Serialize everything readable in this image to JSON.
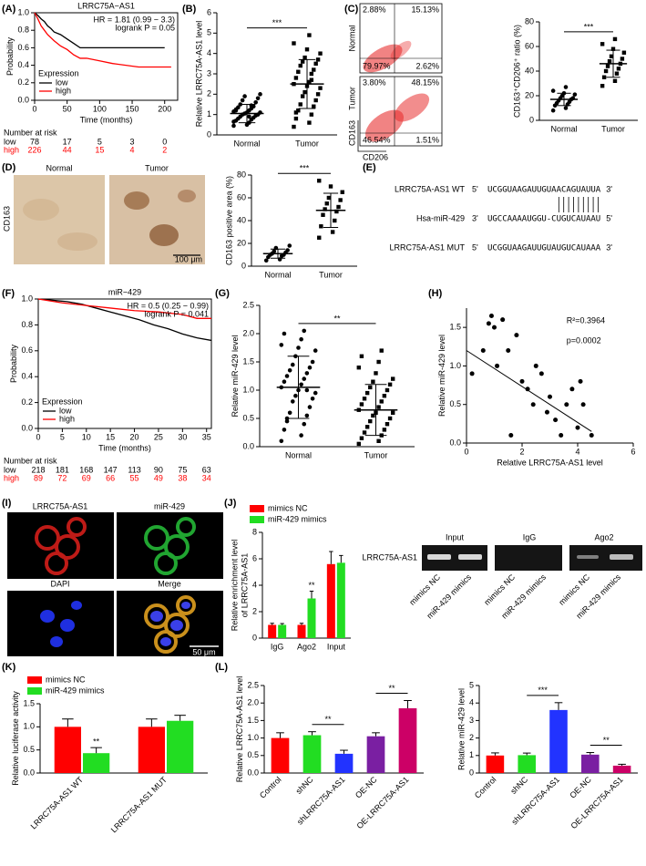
{
  "panel_labels": [
    "(A)",
    "(B)",
    "(C)",
    "(D)",
    "(E)",
    "(F)",
    "(G)",
    "(H)",
    "(I)",
    "(J)",
    "(K)",
    "(L)"
  ],
  "flow": {
    "rows": [
      {
        "name": "Normal",
        "quadrants": [
          "2.88%",
          "15.13%",
          "79.97%",
          "2.62%"
        ]
      },
      {
        "name": "Tumor",
        "quadrants": [
          "3.80%",
          "48.15%",
          "46.54%",
          "1.51%"
        ]
      }
    ],
    "y_axis": "CD163",
    "x_axis": "CD206"
  },
  "ihc": {
    "columns": [
      "Normal",
      "Tumor"
    ],
    "row": "CD163",
    "scale_bar": "100 μm"
  },
  "sequences": {
    "rows": [
      {
        "name": "LRRC75A-AS1 WT",
        "start": "5'",
        "seq": "UCGGUAAGAUUGUAACAGUAUUA",
        "end": "3'"
      },
      {
        "name": "Hsa-miR-429",
        "start": "3'",
        "seq": "UGCCAAAAUGGU-CUGUCAUAAU",
        "end": "5'"
      },
      {
        "name": "LRRC75A-AS1 MUT",
        "start": "5'",
        "seq": "UCGGUAAGAUUGUAUGUCAUAAA",
        "end": "3'"
      }
    ]
  },
  "if_images": {
    "labels": [
      "LRRC75A-AS1",
      "miR-429",
      "DAPI",
      "Merge"
    ],
    "scale_bar": "50 μm"
  },
  "gel": {
    "groups": [
      "Input",
      "IgG",
      "Ago2"
    ],
    "row": "LRRC75A-AS1",
    "lanes": [
      "mimics NC",
      "miR-429 mimics",
      "mimics NC",
      "miR-429 mimics",
      "mimics NC",
      "miR-429 mimics"
    ]
  },
  "chart_data": [
    {
      "type": "km",
      "title": "LRRC75A−AS1",
      "annotations": [
        "HR = 1.81 (0.99 − 3.3)",
        "logrank P = 0.05"
      ],
      "xlabel": "Time (months)",
      "ylabel": "Probability",
      "xlim": [
        0,
        220
      ],
      "xticks": [
        0,
        50,
        100,
        150,
        200
      ],
      "ylim": [
        0,
        1
      ],
      "yticks": [
        {
          "value": 0,
          "label": "0.0"
        },
        0.2,
        0.4,
        0.6,
        0.8,
        {
          "value": 1,
          "label": "1.0"
        }
      ],
      "legend_title": "Expression",
      "series": [
        {
          "name": "low",
          "color": "#000000",
          "x": [
            0,
            5,
            10,
            15,
            20,
            25,
            30,
            40,
            50,
            60,
            70,
            200
          ],
          "values": [
            1,
            0.97,
            0.93,
            0.9,
            0.85,
            0.82,
            0.78,
            0.75,
            0.7,
            0.65,
            0.6,
            0.6
          ]
        },
        {
          "name": "high",
          "color": "#ff0000",
          "x": [
            0,
            5,
            10,
            15,
            20,
            30,
            40,
            50,
            60,
            70,
            80,
            100,
            120,
            160,
            210
          ],
          "values": [
            1,
            0.93,
            0.85,
            0.8,
            0.75,
            0.68,
            0.62,
            0.58,
            0.52,
            0.48,
            0.48,
            0.45,
            0.42,
            0.38,
            0.38
          ]
        }
      ],
      "risk": {
        "title": "Number at risk",
        "rows": [
          {
            "label": "low",
            "values": [
              78,
              17,
              5,
              3,
              0
            ]
          },
          {
            "label": "high",
            "values": [
              226,
              44,
              15,
              4,
              2
            ]
          }
        ]
      }
    },
    {
      "type": "dot",
      "ylabel": "Relative LRRC75A-AS1 level",
      "categories": [
        "Normal",
        "Tumor"
      ],
      "markers": [
        "circle",
        "square"
      ],
      "groups": [
        [
          0.45,
          0.6,
          0.7,
          0.75,
          0.8,
          0.85,
          0.9,
          0.95,
          1.0,
          1.0,
          1.05,
          1.1,
          1.1,
          1.15,
          1.2,
          1.25,
          1.3,
          1.35,
          1.4,
          1.5,
          1.6,
          1.7,
          1.8,
          1.9,
          2.0,
          0.5,
          0.65,
          0.9,
          1.2,
          1.45
        ],
        [
          0.4,
          0.6,
          0.8,
          1.0,
          1.2,
          1.4,
          1.5,
          1.7,
          1.9,
          2.0,
          2.1,
          2.3,
          2.4,
          2.5,
          2.6,
          2.8,
          3.0,
          3.1,
          3.2,
          3.4,
          3.5,
          3.6,
          3.7,
          3.8,
          4.0,
          4.2,
          4.5,
          4.9,
          1.1,
          2.7
        ]
      ],
      "means": [
        1.05,
        2.5
      ],
      "sds": [
        0.45,
        1.2
      ],
      "ylim": [
        0,
        6
      ],
      "yticks": [
        0,
        1,
        2,
        3,
        4,
        5,
        6
      ],
      "significance": [
        {
          "label": "***",
          "groups": [
            0,
            1
          ]
        }
      ]
    },
    {
      "type": "dot",
      "ylabel": "CD163⁺CD206⁺ ratio (%)",
      "categories": [
        "Normal",
        "Tumor"
      ],
      "markers": [
        "circle",
        "square"
      ],
      "groups": [
        [
          8,
          10,
          12,
          13,
          14,
          15,
          16,
          17,
          18,
          18,
          20,
          21,
          22,
          24,
          27
        ],
        [
          28,
          32,
          35,
          38,
          40,
          42,
          44,
          46,
          48,
          50,
          52,
          55,
          58,
          62,
          66
        ]
      ],
      "means": [
        17,
        46
      ],
      "sds": [
        5,
        11
      ],
      "ylim": [
        0,
        80
      ],
      "yticks": [
        0,
        20,
        40,
        60,
        80
      ],
      "significance": [
        {
          "label": "***",
          "groups": [
            0,
            1
          ]
        }
      ]
    },
    {
      "type": "dot",
      "ylabel": "CD163 positive area (%)",
      "categories": [
        "Normal",
        "Tumor"
      ],
      "markers": [
        "circle",
        "square"
      ],
      "groups": [
        [
          5,
          6,
          8,
          9,
          10,
          10,
          11,
          12,
          13,
          14,
          16,
          18
        ],
        [
          25,
          30,
          35,
          40,
          45,
          48,
          50,
          52,
          55,
          58,
          60,
          65,
          70,
          75
        ]
      ],
      "means": [
        11,
        49
      ],
      "sds": [
        4,
        15
      ],
      "ylim": [
        0,
        80
      ],
      "yticks": [
        0,
        20,
        40,
        60,
        80
      ],
      "significance": [
        {
          "label": "***",
          "groups": [
            0,
            1
          ]
        }
      ]
    },
    {
      "type": "km",
      "title": "miR−429",
      "annotations": [
        "HR = 0.5 (0.25 − 0.99)",
        "logrank P = 0.041"
      ],
      "xlabel": "Time (months)",
      "ylabel": "Probability",
      "xlim": [
        0,
        36
      ],
      "xticks": [
        0,
        5,
        10,
        15,
        20,
        25,
        30,
        35
      ],
      "ylim": [
        0,
        1
      ],
      "yticks": [
        {
          "value": 0,
          "label": "0.0"
        },
        0.2,
        0.4,
        0.6,
        0.8,
        {
          "value": 1,
          "label": "1.0"
        }
      ],
      "legend_title": "Expression",
      "series": [
        {
          "name": "low",
          "color": "#000000",
          "x": [
            0,
            3,
            6,
            9,
            12,
            15,
            18,
            21,
            24,
            27,
            30,
            33,
            36
          ],
          "values": [
            1,
            0.99,
            0.98,
            0.96,
            0.93,
            0.9,
            0.87,
            0.84,
            0.8,
            0.77,
            0.73,
            0.7,
            0.68
          ]
        },
        {
          "name": "high",
          "color": "#ff0000",
          "x": [
            0,
            5,
            10,
            15,
            20,
            25,
            30,
            33,
            36
          ],
          "values": [
            1,
            0.97,
            0.95,
            0.93,
            0.91,
            0.9,
            0.88,
            0.85,
            0.85
          ]
        }
      ],
      "risk": {
        "title": "Number at risk",
        "rows": [
          {
            "label": "low",
            "values": [
              218,
              181,
              168,
              147,
              113,
              90,
              75,
              63
            ]
          },
          {
            "label": "high",
            "values": [
              89,
              72,
              69,
              66,
              55,
              49,
              38,
              34
            ]
          }
        ]
      }
    },
    {
      "type": "dot",
      "ylabel": "Relative miR-429 level",
      "categories": [
        "Normal",
        "Tumor"
      ],
      "markers": [
        "circle",
        "square"
      ],
      "groups": [
        [
          0.1,
          0.2,
          0.3,
          0.4,
          0.5,
          0.55,
          0.6,
          0.7,
          0.8,
          0.85,
          0.9,
          0.95,
          1.0,
          1.05,
          1.1,
          1.15,
          1.2,
          1.25,
          1.3,
          1.35,
          1.4,
          1.45,
          1.5,
          1.6,
          1.7,
          1.75,
          1.8,
          1.9,
          2.0,
          2.05,
          0.45,
          1.0
        ],
        [
          0.05,
          0.1,
          0.15,
          0.2,
          0.25,
          0.3,
          0.35,
          0.4,
          0.45,
          0.5,
          0.55,
          0.6,
          0.6,
          0.65,
          0.7,
          0.75,
          0.8,
          0.85,
          0.9,
          0.95,
          1.0,
          1.05,
          1.1,
          1.15,
          1.2,
          1.3,
          1.4,
          1.5,
          1.6,
          1.7
        ]
      ],
      "means": [
        1.05,
        0.65
      ],
      "sds": [
        0.55,
        0.45
      ],
      "ylim": [
        0,
        2.5
      ],
      "yticks": [
        {
          "value": 0,
          "label": "0.0"
        },
        0.5,
        {
          "value": 1,
          "label": "1.0"
        },
        1.5,
        {
          "value": 2,
          "label": "2.0"
        },
        2.5
      ],
      "significance": [
        {
          "label": "**",
          "groups": [
            0,
            1
          ]
        }
      ]
    },
    {
      "type": "scatter",
      "xlabel": "Relative LRRC75A-AS1 level",
      "ylabel": "Relative miR-429 level",
      "color": "#000000",
      "x": [
        0.2,
        0.6,
        0.8,
        1.0,
        1.1,
        1.3,
        1.5,
        1.6,
        1.8,
        2.0,
        2.2,
        2.4,
        2.5,
        2.7,
        2.9,
        3.0,
        3.2,
        3.4,
        3.6,
        3.8,
        4.0,
        4.1,
        4.2,
        4.5,
        0.9
      ],
      "values": [
        0.9,
        1.2,
        1.55,
        1.5,
        1.0,
        1.6,
        1.2,
        0.1,
        1.4,
        0.8,
        0.7,
        0.5,
        1.0,
        0.9,
        0.4,
        0.6,
        0.3,
        0.1,
        0.5,
        0.7,
        0.2,
        0.8,
        0.5,
        0.1,
        1.65
      ],
      "xlim": [
        0,
        6
      ],
      "xticks": [
        0,
        2,
        4,
        6
      ],
      "ylim": [
        0,
        1.75
      ],
      "yticks": [
        {
          "value": 0,
          "label": "0.0"
        },
        0.5,
        {
          "value": 1,
          "label": "1.0"
        },
        1.5
      ],
      "trend": {
        "x": [
          0,
          4.5
        ],
        "values": [
          1.2,
          0.15
        ]
      },
      "annotations": [
        "R²=0.3964",
        "p=0.0002"
      ]
    },
    {
      "type": "bar",
      "ylabel": [
        "Relative enrichment level",
        "of LRRC75A-AS1"
      ],
      "categories": [
        "IgG",
        "Ago2",
        "Input"
      ],
      "legend": "top",
      "series": [
        {
          "name": "mimics NC",
          "color": "#ff0000",
          "values": [
            1,
            1,
            5.6
          ],
          "errors": [
            0.12,
            0.12,
            0.95
          ]
        },
        {
          "name": "miR-429 mimics",
          "color": "#22dd22",
          "values": [
            1,
            3,
            5.7
          ],
          "errors": [
            0.1,
            0.55,
            0.55
          ]
        }
      ],
      "ylim": [
        0,
        8
      ],
      "yticks": [
        0,
        2,
        4,
        6,
        8
      ],
      "significance": [
        {
          "label": "**",
          "series": 1,
          "category": 1
        }
      ]
    },
    {
      "type": "bar",
      "ylabel": "Relative luciferase activity",
      "categories": [
        "LRRC75A-AS1 WT",
        "LRRC75A-AS1 MUT"
      ],
      "legend": "top",
      "series": [
        {
          "name": "mimics NC",
          "color": "#ff0000",
          "values": [
            1,
            1
          ],
          "errors": [
            0.17,
            0.17
          ]
        },
        {
          "name": "miR-429 mimics",
          "color": "#22dd22",
          "values": [
            0.43,
            1.13
          ],
          "errors": [
            0.12,
            0.12
          ]
        }
      ],
      "ylim": [
        0,
        1.5
      ],
      "yticks": [
        {
          "value": 0,
          "label": "0.0"
        },
        0.5,
        {
          "value": 1,
          "label": "1.0"
        },
        1.5
      ],
      "significance": [
        {
          "label": "**",
          "series": 1,
          "category": 0
        }
      ]
    },
    {
      "type": "bar",
      "ylabel": "Relative LRRC75A-AS1 level",
      "categories": [
        "Control",
        "shNC",
        "shLRRC75A-AS1",
        "OE-NC",
        "OE-LRRC75A-AS1"
      ],
      "series": [
        {
          "colors": [
            "#ff0000",
            "#22dd22",
            "#2233ff",
            "#7a1fa2",
            "#cc0066"
          ],
          "values": [
            1,
            1.08,
            0.55,
            1.05,
            1.85
          ],
          "errors": [
            0.15,
            0.1,
            0.1,
            0.1,
            0.22
          ]
        }
      ],
      "ylim": [
        0,
        2.5
      ],
      "yticks": [
        {
          "value": 0,
          "label": "0.0"
        },
        0.5,
        {
          "value": 1,
          "label": "1.0"
        },
        1.5,
        {
          "value": 2,
          "label": "2.0"
        },
        2.5
      ],
      "significance": [
        {
          "label": "**",
          "groups": [
            1,
            2
          ]
        },
        {
          "label": "**",
          "groups": [
            3,
            4
          ]
        }
      ]
    },
    {
      "type": "bar",
      "ylabel": "Relative miR-429 level",
      "categories": [
        "Control",
        "shNC",
        "shLRRC75A-AS1",
        "OE-NC",
        "OE-LRRC75A-AS1"
      ],
      "series": [
        {
          "colors": [
            "#ff0000",
            "#22dd22",
            "#2233ff",
            "#7a1fa2",
            "#cc0066"
          ],
          "values": [
            1,
            1.02,
            3.6,
            1.05,
            0.42
          ],
          "errors": [
            0.15,
            0.12,
            0.42,
            0.12,
            0.08
          ]
        }
      ],
      "ylim": [
        0,
        5
      ],
      "yticks": [
        0,
        1,
        2,
        3,
        4,
        5
      ],
      "significance": [
        {
          "label": "***",
          "groups": [
            1,
            2
          ]
        },
        {
          "label": "**",
          "groups": [
            3,
            4
          ]
        }
      ]
    }
  ]
}
